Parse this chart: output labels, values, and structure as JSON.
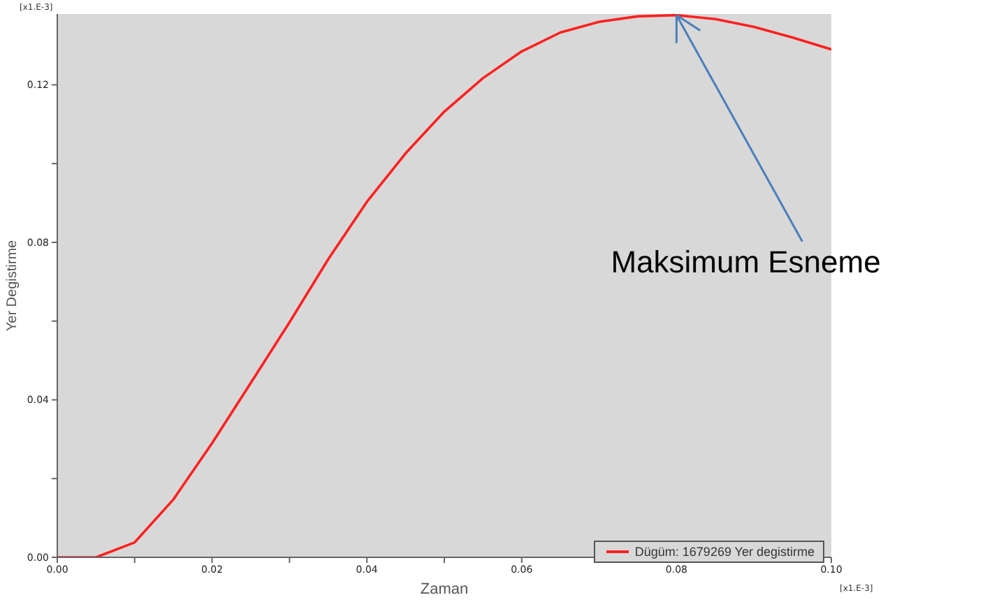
{
  "chart_data": {
    "type": "line",
    "xlabel": "Zaman",
    "ylabel": "Yer Degistirme",
    "x": [
      0,
      0.005,
      0.01,
      0.015,
      0.02,
      0.025,
      0.03,
      0.035,
      0.04,
      0.045,
      0.05,
      0.055,
      0.06,
      0.065,
      0.07,
      0.075,
      0.08,
      0.085,
      0.09,
      0.095,
      0.1
    ],
    "series": [
      {
        "name": "Dügüm: 1679269 Yer degistirme",
        "color": "#ff2020",
        "values": [
          0,
          0,
          0.0038,
          0.0147,
          0.029,
          0.0443,
          0.0597,
          0.0757,
          0.0903,
          0.1026,
          0.1132,
          0.1217,
          0.1285,
          0.1333,
          0.136,
          0.1374,
          0.1377,
          0.1367,
          0.1347,
          0.132,
          0.129
        ]
      }
    ],
    "xlim": [
      0,
      0.1
    ],
    "xticks": [
      {
        "value": 0,
        "label": "0.00"
      },
      {
        "value": 0.01,
        "label": null
      },
      {
        "value": 0.02,
        "label": "0.02"
      },
      {
        "value": 0.03,
        "label": null
      },
      {
        "value": 0.04,
        "label": "0.04"
      },
      {
        "value": 0.05,
        "label": null
      },
      {
        "value": 0.06,
        "label": "0.06"
      },
      {
        "value": 0.07,
        "label": null
      },
      {
        "value": 0.08,
        "label": "0.08"
      },
      {
        "value": 0.09,
        "label": null
      },
      {
        "value": 0.1,
        "label": "0.10"
      }
    ],
    "ylim": [
      0,
      0.138
    ],
    "yticks": [
      {
        "value": 0,
        "label": "0.00"
      },
      {
        "value": 0.02,
        "label": null
      },
      {
        "value": 0.04,
        "label": "0.04"
      },
      {
        "value": 0.06,
        "label": null
      },
      {
        "value": 0.08,
        "label": "0.08"
      },
      {
        "value": 0.1,
        "label": null
      },
      {
        "value": 0.12,
        "label": "0.12"
      }
    ],
    "legend": "bottom right",
    "marker": "none",
    "line_style": "solid",
    "annotations": [
      "[x1.E-3]",
      "[x1.E-3]",
      {
        "text": "Maksimum Esneme",
        "x": 0.08,
        "y": 0.1377
      }
    ]
  }
}
